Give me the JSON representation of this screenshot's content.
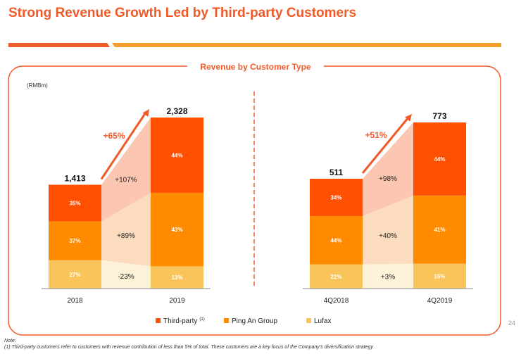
{
  "title": "Strong Revenue Growth Led by Third-party Customers",
  "page_number": "24",
  "footnote": {
    "note_label": "Note:",
    "text": "(1) Third-party customers refer to customers with revenue contribution of less than 5% of total. These customers are a key focus of the Company's diversification strategy"
  },
  "colors": {
    "accent": "#f05a28",
    "third_party": "#ff4f00",
    "ping_an": "#ff8c00",
    "lufax": "#f9c55b",
    "third_party_bridge": "#fbc6b2",
    "ping_an_bridge": "#fcdcbf",
    "lufax_bridge": "#fdf2d8"
  },
  "chart_data": {
    "type": "bar",
    "subtype": "stacked",
    "title": "Revenue by Customer Type",
    "unit": "(RMBm)",
    "legend": [
      {
        "name": "Third-party",
        "sup": "(1)"
      },
      {
        "name": "Ping An Group",
        "sup": ""
      },
      {
        "name": "Lufax",
        "sup": ""
      }
    ],
    "panels": [
      {
        "id": "annual",
        "categories": [
          "2018",
          "2019"
        ],
        "totals": [
          1413,
          2328
        ],
        "total_labels": [
          "1,413",
          "2,328"
        ],
        "series": [
          {
            "name": "Lufax",
            "percents": [
              27,
              13
            ],
            "labels": [
              "27%",
              "13%"
            ]
          },
          {
            "name": "Ping An Group",
            "percents": [
              37,
              43
            ],
            "labels": [
              "37%",
              "43%"
            ]
          },
          {
            "name": "Third-party",
            "percents": [
              35,
              44
            ],
            "labels": [
              "35%",
              "44%"
            ]
          }
        ],
        "growth": [
          "-23%",
          "+89%",
          "+107%"
        ],
        "total_growth": "+65%"
      },
      {
        "id": "quarterly",
        "categories": [
          "4Q2018",
          "4Q2019"
        ],
        "totals": [
          511,
          773
        ],
        "total_labels": [
          "511",
          "773"
        ],
        "series": [
          {
            "name": "Lufax",
            "percents": [
              22,
              15
            ],
            "labels": [
              "22%",
              "15%"
            ]
          },
          {
            "name": "Ping An Group",
            "percents": [
              44,
              41
            ],
            "labels": [
              "44%",
              "41%"
            ]
          },
          {
            "name": "Third-party",
            "percents": [
              34,
              44
            ],
            "labels": [
              "34%",
              "44%"
            ]
          }
        ],
        "growth": [
          "+3%",
          "+40%",
          "+98%"
        ],
        "total_growth": "+51%"
      }
    ]
  }
}
